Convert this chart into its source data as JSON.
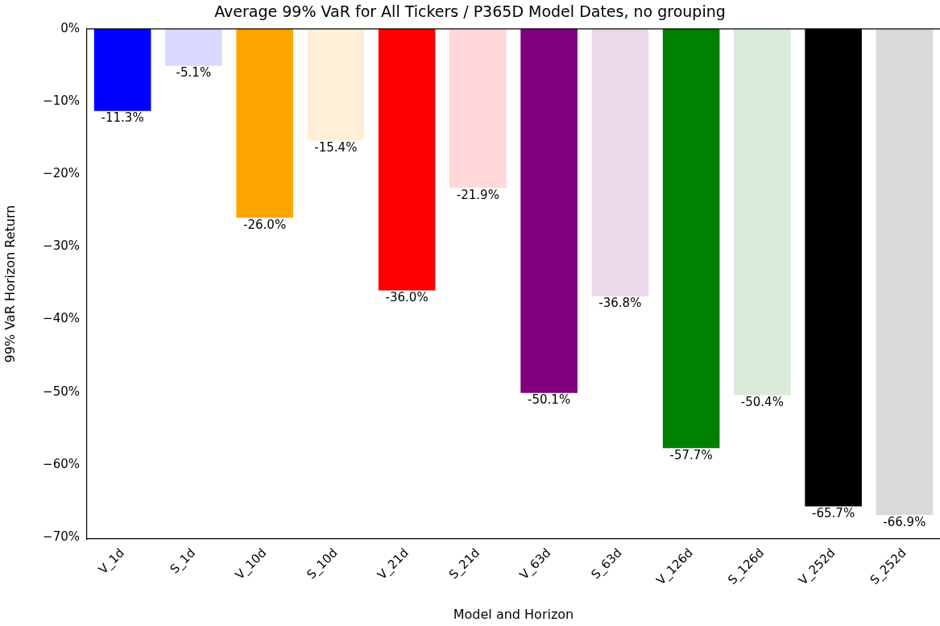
{
  "chart_data": {
    "type": "bar",
    "title": "Average 99% VaR for All Tickers / P365D Model Dates, no grouping",
    "xlabel": "Model and Horizon",
    "ylabel": "99% VaR Horizon Return",
    "categories": [
      "V_1d",
      "S_1d",
      "V_10d",
      "S_10d",
      "V_21d",
      "S_21d",
      "V_63d",
      "S_63d",
      "V_126d",
      "S_126d",
      "V_252d",
      "S_252d"
    ],
    "values": [
      -11.3,
      -5.1,
      -26.0,
      -15.4,
      -36.0,
      -21.9,
      -50.1,
      -36.8,
      -57.7,
      -50.4,
      -65.7,
      -66.9
    ],
    "value_labels": [
      "-11.3%",
      "-5.1%",
      "-26.0%",
      "-15.4%",
      "-36.0%",
      "-21.9%",
      "-50.1%",
      "-36.8%",
      "-57.7%",
      "-50.4%",
      "-65.7%",
      "-66.9%"
    ],
    "colors": [
      "#0000ff",
      "#d9d9ff",
      "#ffa500",
      "#ffefd9",
      "#ff0000",
      "#ffd9d9",
      "#800080",
      "#ecd9ec",
      "#008000",
      "#d9ecd9",
      "#000000",
      "#d9d9d9"
    ],
    "ylim": [
      -70.2,
      0
    ],
    "yticks": [
      {
        "value": 0,
        "label": "0%"
      },
      {
        "value": -10,
        "label": "−10%"
      },
      {
        "value": -20,
        "label": "−20%"
      },
      {
        "value": -30,
        "label": "−30%"
      },
      {
        "value": -40,
        "label": "−40%"
      },
      {
        "value": -50,
        "label": "−50%"
      },
      {
        "value": -60,
        "label": "−60%"
      },
      {
        "value": -70,
        "label": "−70%"
      }
    ],
    "ref_lines": [
      {
        "axis": "y",
        "value": 0,
        "color": "#000000"
      }
    ],
    "grid": false,
    "legend": false
  }
}
